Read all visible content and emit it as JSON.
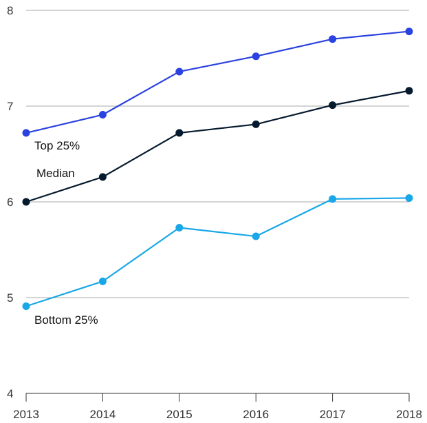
{
  "chart_data": {
    "type": "line",
    "x": [
      2013,
      2014,
      2015,
      2016,
      2017,
      2018
    ],
    "x_tick_labels": [
      "2013",
      "2014",
      "2015",
      "2016",
      "2017",
      "2018"
    ],
    "ylim": [
      4,
      8
    ],
    "y_ticks": [
      4,
      5,
      6,
      7,
      8
    ],
    "y_tick_labels": [
      "4",
      "5",
      "6",
      "7",
      "8"
    ],
    "grid": "horizontal",
    "series": [
      {
        "name": "Top 25%",
        "color": "#2a42e0",
        "values": [
          6.72,
          6.91,
          7.36,
          7.52,
          7.7,
          7.78
        ]
      },
      {
        "name": "Median",
        "color": "#061a2e",
        "values": [
          6.0,
          6.26,
          6.72,
          6.81,
          7.01,
          7.16
        ]
      },
      {
        "name": "Bottom 25%",
        "color": "#19a7e8",
        "values": [
          4.91,
          5.17,
          5.73,
          5.64,
          6.03,
          6.04
        ]
      }
    ]
  }
}
